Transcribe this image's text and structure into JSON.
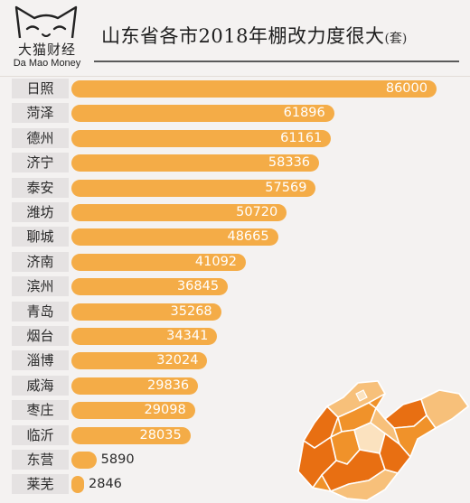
{
  "header": {
    "logo_cn": "大猫财经",
    "logo_en": "Da Mao Money",
    "title": "山东省各市2018年棚改力度很大",
    "unit": "(套)"
  },
  "chart_data": {
    "type": "bar",
    "orientation": "horizontal",
    "title": "山东省各市2018年棚改力度很大",
    "unit": "套",
    "categories": [
      "日照",
      "菏泽",
      "德州",
      "济宁",
      "泰安",
      "潍坊",
      "聊城",
      "济南",
      "滨州",
      "青岛",
      "烟台",
      "淄博",
      "威海",
      "枣庄",
      "临沂",
      "东营",
      "莱芜"
    ],
    "values": [
      86000,
      61896,
      61161,
      58336,
      57569,
      50720,
      48665,
      41092,
      36845,
      35268,
      34341,
      32024,
      29836,
      29098,
      28035,
      5890,
      2846
    ],
    "xlim": [
      0,
      86000
    ],
    "bar_color": "#f4ac47",
    "grid": false,
    "legend": "none"
  },
  "colors": {
    "background": "#f4f2f1",
    "bar": "#f4ac47",
    "label_box": "#e5e2e2",
    "map_dark": "#e86f12",
    "map_mid": "#f0922a",
    "map_light": "#f7c07a",
    "map_pale": "#fbe2bf"
  }
}
